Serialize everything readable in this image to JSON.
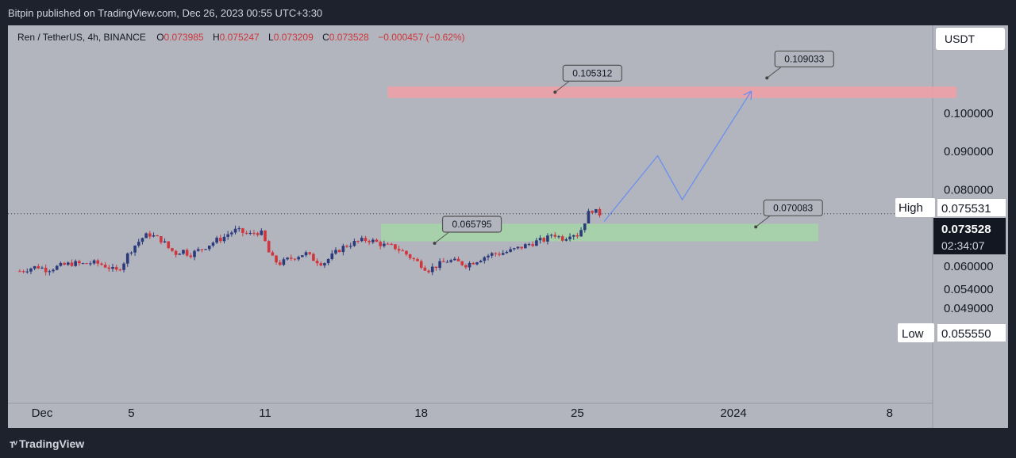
{
  "header": {
    "text": "Bitpin published on TradingView.com, Dec 26, 2023 00:55 UTC+3:30"
  },
  "footer": {
    "logo": "TradingView"
  },
  "chart_data": {
    "type": "candlestick",
    "symbol_line": {
      "symbol": "Ren / TetherUS, 4h, BINANCE",
      "o_label": "O",
      "o": "0.073985",
      "h_label": "H",
      "h": "0.075247",
      "l_label": "L",
      "l": "0.073209",
      "c_label": "C",
      "c": "0.073528",
      "change": "−0.000457 (−0.62%)"
    },
    "currency": "USDT",
    "y_ticks": [
      "0.100000",
      "0.090000",
      "0.080000",
      "0.060000",
      "0.054000",
      "0.049000"
    ],
    "y_tick_values": [
      0.1,
      0.09,
      0.08,
      0.06,
      0.054,
      0.049
    ],
    "x_ticks": [
      "Dec",
      "5",
      "11",
      "18",
      "25",
      "2024",
      "8"
    ],
    "x_tick_days": [
      1,
      5,
      11,
      18,
      25,
      32,
      39
    ],
    "last_price": "0.073528",
    "countdown": "02:34:07",
    "high_label": "High",
    "high_value": "0.075531",
    "low_label": "Low",
    "low_value": "0.055550",
    "zones": [
      {
        "color": "#f0a0a6",
        "from_day": 16.5,
        "to_day": 42,
        "top": 0.1068,
        "bottom": 0.1038
      },
      {
        "color": "#a5d6a7",
        "from_day": 16.2,
        "to_day": 35.8,
        "top": 0.0709,
        "bottom": 0.0663
      }
    ],
    "callouts": [
      {
        "text": "0.105312",
        "day": 24.0,
        "price": 0.105312
      },
      {
        "text": "0.109033",
        "day": 33.5,
        "price": 0.109033
      },
      {
        "text": "0.065795",
        "day": 18.6,
        "price": 0.065795
      },
      {
        "text": "0.070083",
        "day": 33.0,
        "price": 0.070083
      }
    ],
    "projection": [
      {
        "day": 26.2,
        "price": 0.0715
      },
      {
        "day": 28.6,
        "price": 0.0887
      },
      {
        "day": 29.7,
        "price": 0.0772
      },
      {
        "day": 32.8,
        "price": 0.1056
      }
    ],
    "colors": {
      "up": "#2b3a7a",
      "down": "#d0353b",
      "background": "#b2b5be",
      "zone_green": "#a5d6a7",
      "zone_red": "#f0a0a6",
      "projection": "#6b8ff0"
    },
    "price_path": [
      [
        0.0,
        0.0585
      ],
      [
        0.4,
        0.0592
      ],
      [
        0.8,
        0.0597
      ],
      [
        1.2,
        0.0589
      ],
      [
        1.6,
        0.0595
      ],
      [
        2.0,
        0.0601
      ],
      [
        2.4,
        0.0606
      ],
      [
        2.8,
        0.0603
      ],
      [
        3.2,
        0.0607
      ],
      [
        3.6,
        0.0604
      ],
      [
        4.0,
        0.0595
      ],
      [
        4.3,
        0.0583
      ],
      [
        4.6,
        0.0602
      ],
      [
        4.9,
        0.0635
      ],
      [
        5.2,
        0.0655
      ],
      [
        5.5,
        0.0672
      ],
      [
        5.8,
        0.0682
      ],
      [
        6.1,
        0.0673
      ],
      [
        6.4,
        0.0665
      ],
      [
        6.7,
        0.0643
      ],
      [
        7.0,
        0.0632
      ],
      [
        7.3,
        0.064
      ],
      [
        7.6,
        0.0628
      ],
      [
        7.9,
        0.0636
      ],
      [
        8.2,
        0.0645
      ],
      [
        8.5,
        0.0655
      ],
      [
        8.8,
        0.0665
      ],
      [
        9.1,
        0.0672
      ],
      [
        9.4,
        0.0685
      ],
      [
        9.7,
        0.0692
      ],
      [
        10.0,
        0.0686
      ],
      [
        10.3,
        0.068
      ],
      [
        10.6,
        0.0688
      ],
      [
        10.9,
        0.0682
      ],
      [
        11.1,
        0.064
      ],
      [
        11.4,
        0.0612
      ],
      [
        11.7,
        0.0605
      ],
      [
        12.0,
        0.0615
      ],
      [
        12.4,
        0.0624
      ],
      [
        12.8,
        0.0632
      ],
      [
        13.2,
        0.0615
      ],
      [
        13.6,
        0.0605
      ],
      [
        14.0,
        0.0625
      ],
      [
        14.4,
        0.0645
      ],
      [
        14.8,
        0.0656
      ],
      [
        15.2,
        0.0663
      ],
      [
        15.6,
        0.0668
      ],
      [
        16.0,
        0.066
      ],
      [
        16.4,
        0.0651
      ],
      [
        16.8,
        0.0648
      ],
      [
        17.2,
        0.0635
      ],
      [
        17.6,
        0.0618
      ],
      [
        18.0,
        0.0602
      ],
      [
        18.3,
        0.0588
      ],
      [
        18.6,
        0.0597
      ],
      [
        18.9,
        0.0605
      ],
      [
        19.2,
        0.0613
      ],
      [
        19.6,
        0.0609
      ],
      [
        20.0,
        0.0602
      ],
      [
        20.4,
        0.0611
      ],
      [
        20.8,
        0.0622
      ],
      [
        21.2,
        0.063
      ],
      [
        21.6,
        0.0632
      ],
      [
        22.0,
        0.0638
      ],
      [
        22.4,
        0.0646
      ],
      [
        22.8,
        0.0655
      ],
      [
        23.2,
        0.0663
      ],
      [
        23.6,
        0.0668
      ],
      [
        23.9,
        0.0685
      ],
      [
        24.1,
        0.0676
      ],
      [
        24.4,
        0.067
      ],
      [
        24.7,
        0.0685
      ],
      [
        25.0,
        0.068
      ],
      [
        25.2,
        0.0697
      ],
      [
        25.4,
        0.0725
      ],
      [
        25.6,
        0.0748
      ],
      [
        25.8,
        0.074
      ],
      [
        26.0,
        0.0735
      ]
    ]
  }
}
